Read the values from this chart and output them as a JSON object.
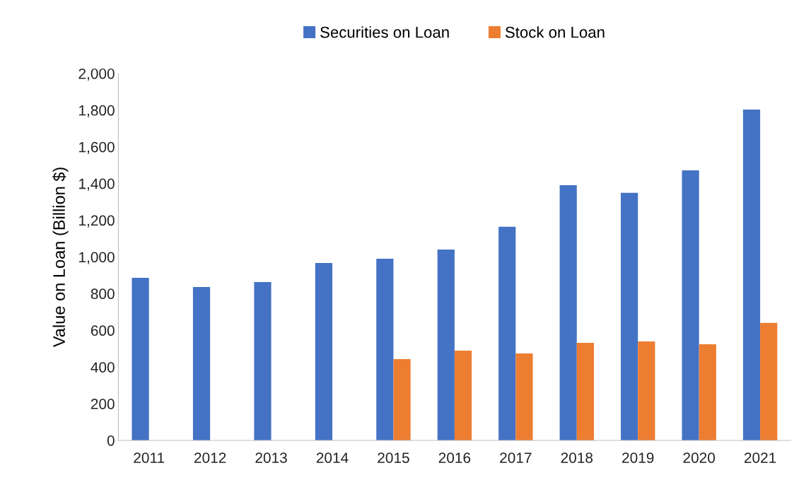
{
  "chart_data": {
    "type": "bar",
    "ylabel": "Value on Loan (Billion $)",
    "categories": [
      "2011",
      "2012",
      "2013",
      "2014",
      "2015",
      "2016",
      "2017",
      "2018",
      "2019",
      "2020",
      "2021"
    ],
    "series": [
      {
        "name": "Securities on Loan",
        "color": "#4472c4",
        "values": [
          886,
          836,
          863,
          967,
          990,
          1040,
          1164,
          1391,
          1349,
          1472,
          1803
        ]
      },
      {
        "name": "Stock on Loan",
        "color": "#ed7d31",
        "values": [
          null,
          null,
          null,
          null,
          443,
          489,
          474,
          532,
          539,
          524,
          640
        ]
      }
    ],
    "ylim": [
      0,
      2000
    ],
    "yticks": [
      0,
      200,
      400,
      600,
      800,
      {
        "value": 1000,
        "label": "1,000"
      },
      {
        "value": 1200,
        "label": "1,200"
      },
      {
        "value": 1400,
        "label": "1,400"
      },
      {
        "value": 1600,
        "label": "1,600"
      },
      {
        "value": 1800,
        "label": "1,800"
      },
      {
        "value": 2000,
        "label": "2,000"
      }
    ],
    "grid": false,
    "legend": "top"
  }
}
